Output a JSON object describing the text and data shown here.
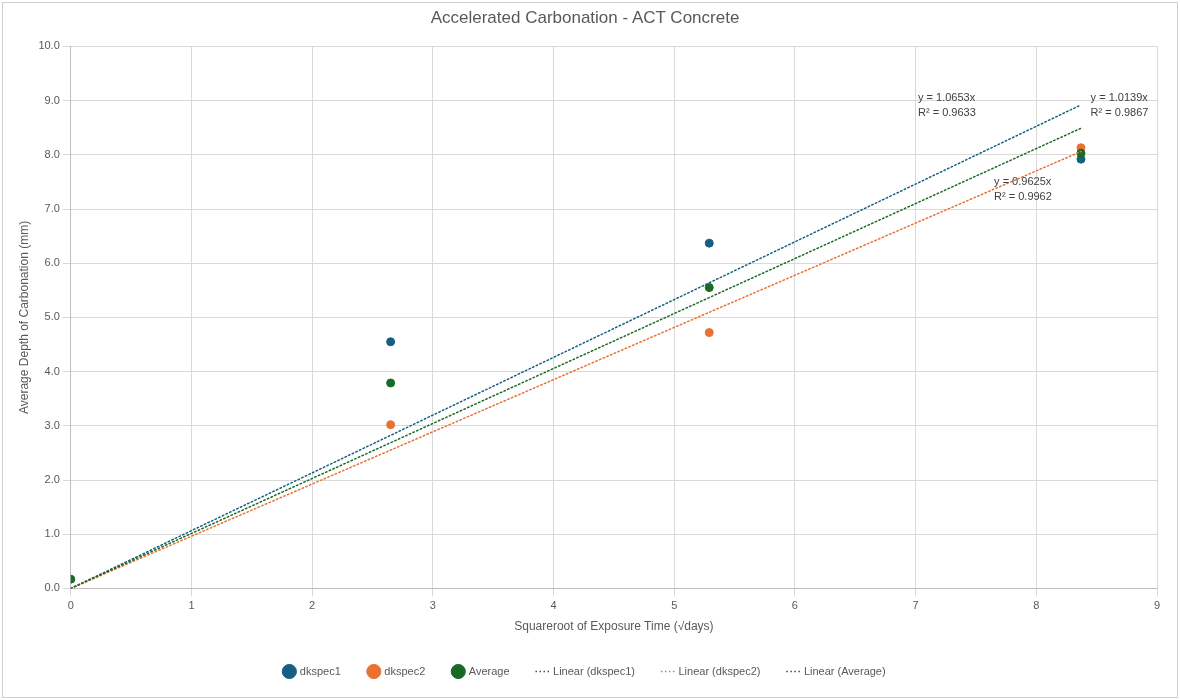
{
  "chart_data": {
    "type": "scatter",
    "title": "Accelerated Carbonation - ACT Concrete",
    "xlabel": "Squareroot of Exposure Time (√days)",
    "ylabel": "Average Depth of Carbonation (mm)",
    "xlim": [
      0,
      9
    ],
    "xticks": [
      0,
      1,
      2,
      3,
      4,
      5,
      6,
      7,
      8,
      9
    ],
    "ylim": [
      0,
      10
    ],
    "yticks": [
      {
        "value": 0,
        "label": "0.0"
      },
      {
        "value": 1,
        "label": "1.0"
      },
      {
        "value": 2,
        "label": "2.0"
      },
      {
        "value": 3,
        "label": "3.0"
      },
      {
        "value": 4,
        "label": "4.0"
      },
      {
        "value": 5,
        "label": "5.0"
      },
      {
        "value": 6,
        "label": "6.0"
      },
      {
        "value": 7,
        "label": "7.0"
      },
      {
        "value": 8,
        "label": "8.0"
      },
      {
        "value": 9,
        "label": "9.0"
      },
      {
        "value": 10,
        "label": "10.0"
      }
    ],
    "grid": true,
    "legend": "bottom",
    "marker": "circle",
    "series": [
      {
        "name": "dkspec1",
        "type": "scatter",
        "color": "#156082",
        "x": [
          2.65,
          5.29,
          8.37
        ],
        "values": [
          4.55,
          6.37,
          7.92
        ]
      },
      {
        "name": "dkspec2",
        "type": "scatter",
        "color": "#e97132",
        "x": [
          2.65,
          5.29,
          8.37
        ],
        "values": [
          3.02,
          4.72,
          8.13
        ]
      },
      {
        "name": "Average",
        "type": "scatter",
        "color": "#196b24",
        "x": [
          0,
          2.65,
          5.29,
          8.37
        ],
        "values": [
          0.17,
          3.79,
          5.55,
          8.03
        ]
      },
      {
        "name": "Linear (dkspec1)",
        "type": "line",
        "color": "#156082",
        "line_style": "dotted",
        "marker": "none",
        "x": [
          0,
          8.37
        ],
        "values": [
          0,
          8.92
        ]
      },
      {
        "name": "Linear (dkspec2)",
        "type": "line",
        "color": "#e97132",
        "line_style": "dotted",
        "marker": "none",
        "x": [
          0,
          8.37
        ],
        "values": [
          0,
          8.06
        ]
      },
      {
        "name": "Linear (Average)",
        "type": "line",
        "color": "#196b24",
        "line_style": "dotted",
        "marker": "none",
        "x": [
          0,
          8.37
        ],
        "values": [
          0,
          8.49
        ]
      }
    ],
    "annotations": [
      "y = 1.0653x\nR² = 0.9633",
      "y = 1.0139x\nR² = 0.9867",
      "y = 0.9625x\nR² = 0.9962"
    ]
  }
}
